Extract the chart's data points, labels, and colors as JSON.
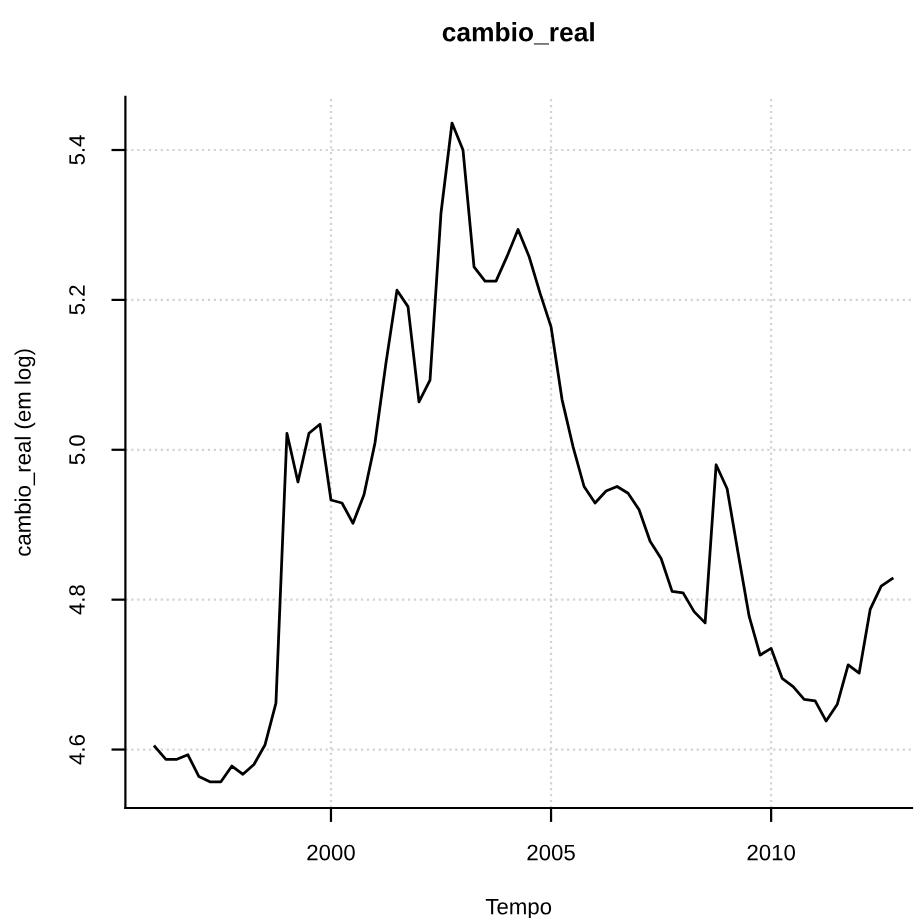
{
  "chart_data": {
    "type": "line",
    "title": "cambio_real",
    "xlabel": "Tempo",
    "ylabel": "cambio_real (em log)",
    "x": [
      1996.0,
      1996.25,
      1996.5,
      1996.75,
      1997.0,
      1997.25,
      1997.5,
      1997.75,
      1998.0,
      1998.25,
      1998.5,
      1998.75,
      1999.0,
      1999.25,
      1999.5,
      1999.75,
      2000.0,
      2000.25,
      2000.5,
      2000.75,
      2001.0,
      2001.25,
      2001.5,
      2001.75,
      2002.0,
      2002.25,
      2002.5,
      2002.75,
      2003.0,
      2003.25,
      2003.5,
      2003.75,
      2004.0,
      2004.25,
      2004.5,
      2004.75,
      2005.0,
      2005.25,
      2005.5,
      2005.75,
      2006.0,
      2006.25,
      2006.5,
      2006.75,
      2007.0,
      2007.25,
      2007.5,
      2007.75,
      2008.0,
      2008.25,
      2008.5,
      2008.75,
      2009.0,
      2009.25,
      2009.5,
      2009.75,
      2010.0,
      2010.25,
      2010.5,
      2010.75,
      2011.0,
      2011.25,
      2011.5,
      2011.75,
      2012.0,
      2012.25,
      2012.5,
      2012.75
    ],
    "series": [
      {
        "color": "#000000",
        "values": [
          4.604,
          4.587,
          4.587,
          4.593,
          4.564,
          4.557,
          4.557,
          4.578,
          4.567,
          4.58,
          4.606,
          4.662,
          5.022,
          4.957,
          5.022,
          5.034,
          4.933,
          4.929,
          4.902,
          4.94,
          5.009,
          5.116,
          5.213,
          5.191,
          5.064,
          5.093,
          5.316,
          5.436,
          5.4,
          5.244,
          5.225,
          5.225,
          5.258,
          5.294,
          5.258,
          5.209,
          5.164,
          5.067,
          5.004,
          4.951,
          4.929,
          4.945,
          4.951,
          4.942,
          4.92,
          4.878,
          4.855,
          4.811,
          4.809,
          4.784,
          4.769,
          4.98,
          4.948,
          4.862,
          4.778,
          4.726,
          4.735,
          4.695,
          4.684,
          4.667,
          4.665,
          4.638,
          4.66,
          4.713,
          4.702,
          4.787,
          4.818,
          4.828
        ]
      }
    ],
    "xlim": [
      1995.33,
      2013.2
    ],
    "xticks": [
      2000,
      2005,
      2010
    ],
    "ylim": [
      4.522,
      5.471
    ],
    "yticks": [
      {
        "value": 4.6,
        "label": "4.6"
      },
      {
        "value": 4.8,
        "label": "4.8"
      },
      {
        "value": 5.0,
        "label": "5.0"
      },
      {
        "value": 5.2,
        "label": "5.2"
      },
      {
        "value": 5.4,
        "label": "5.4"
      }
    ],
    "grid": true,
    "marker": "none",
    "line_style": "solid",
    "legend": false
  }
}
